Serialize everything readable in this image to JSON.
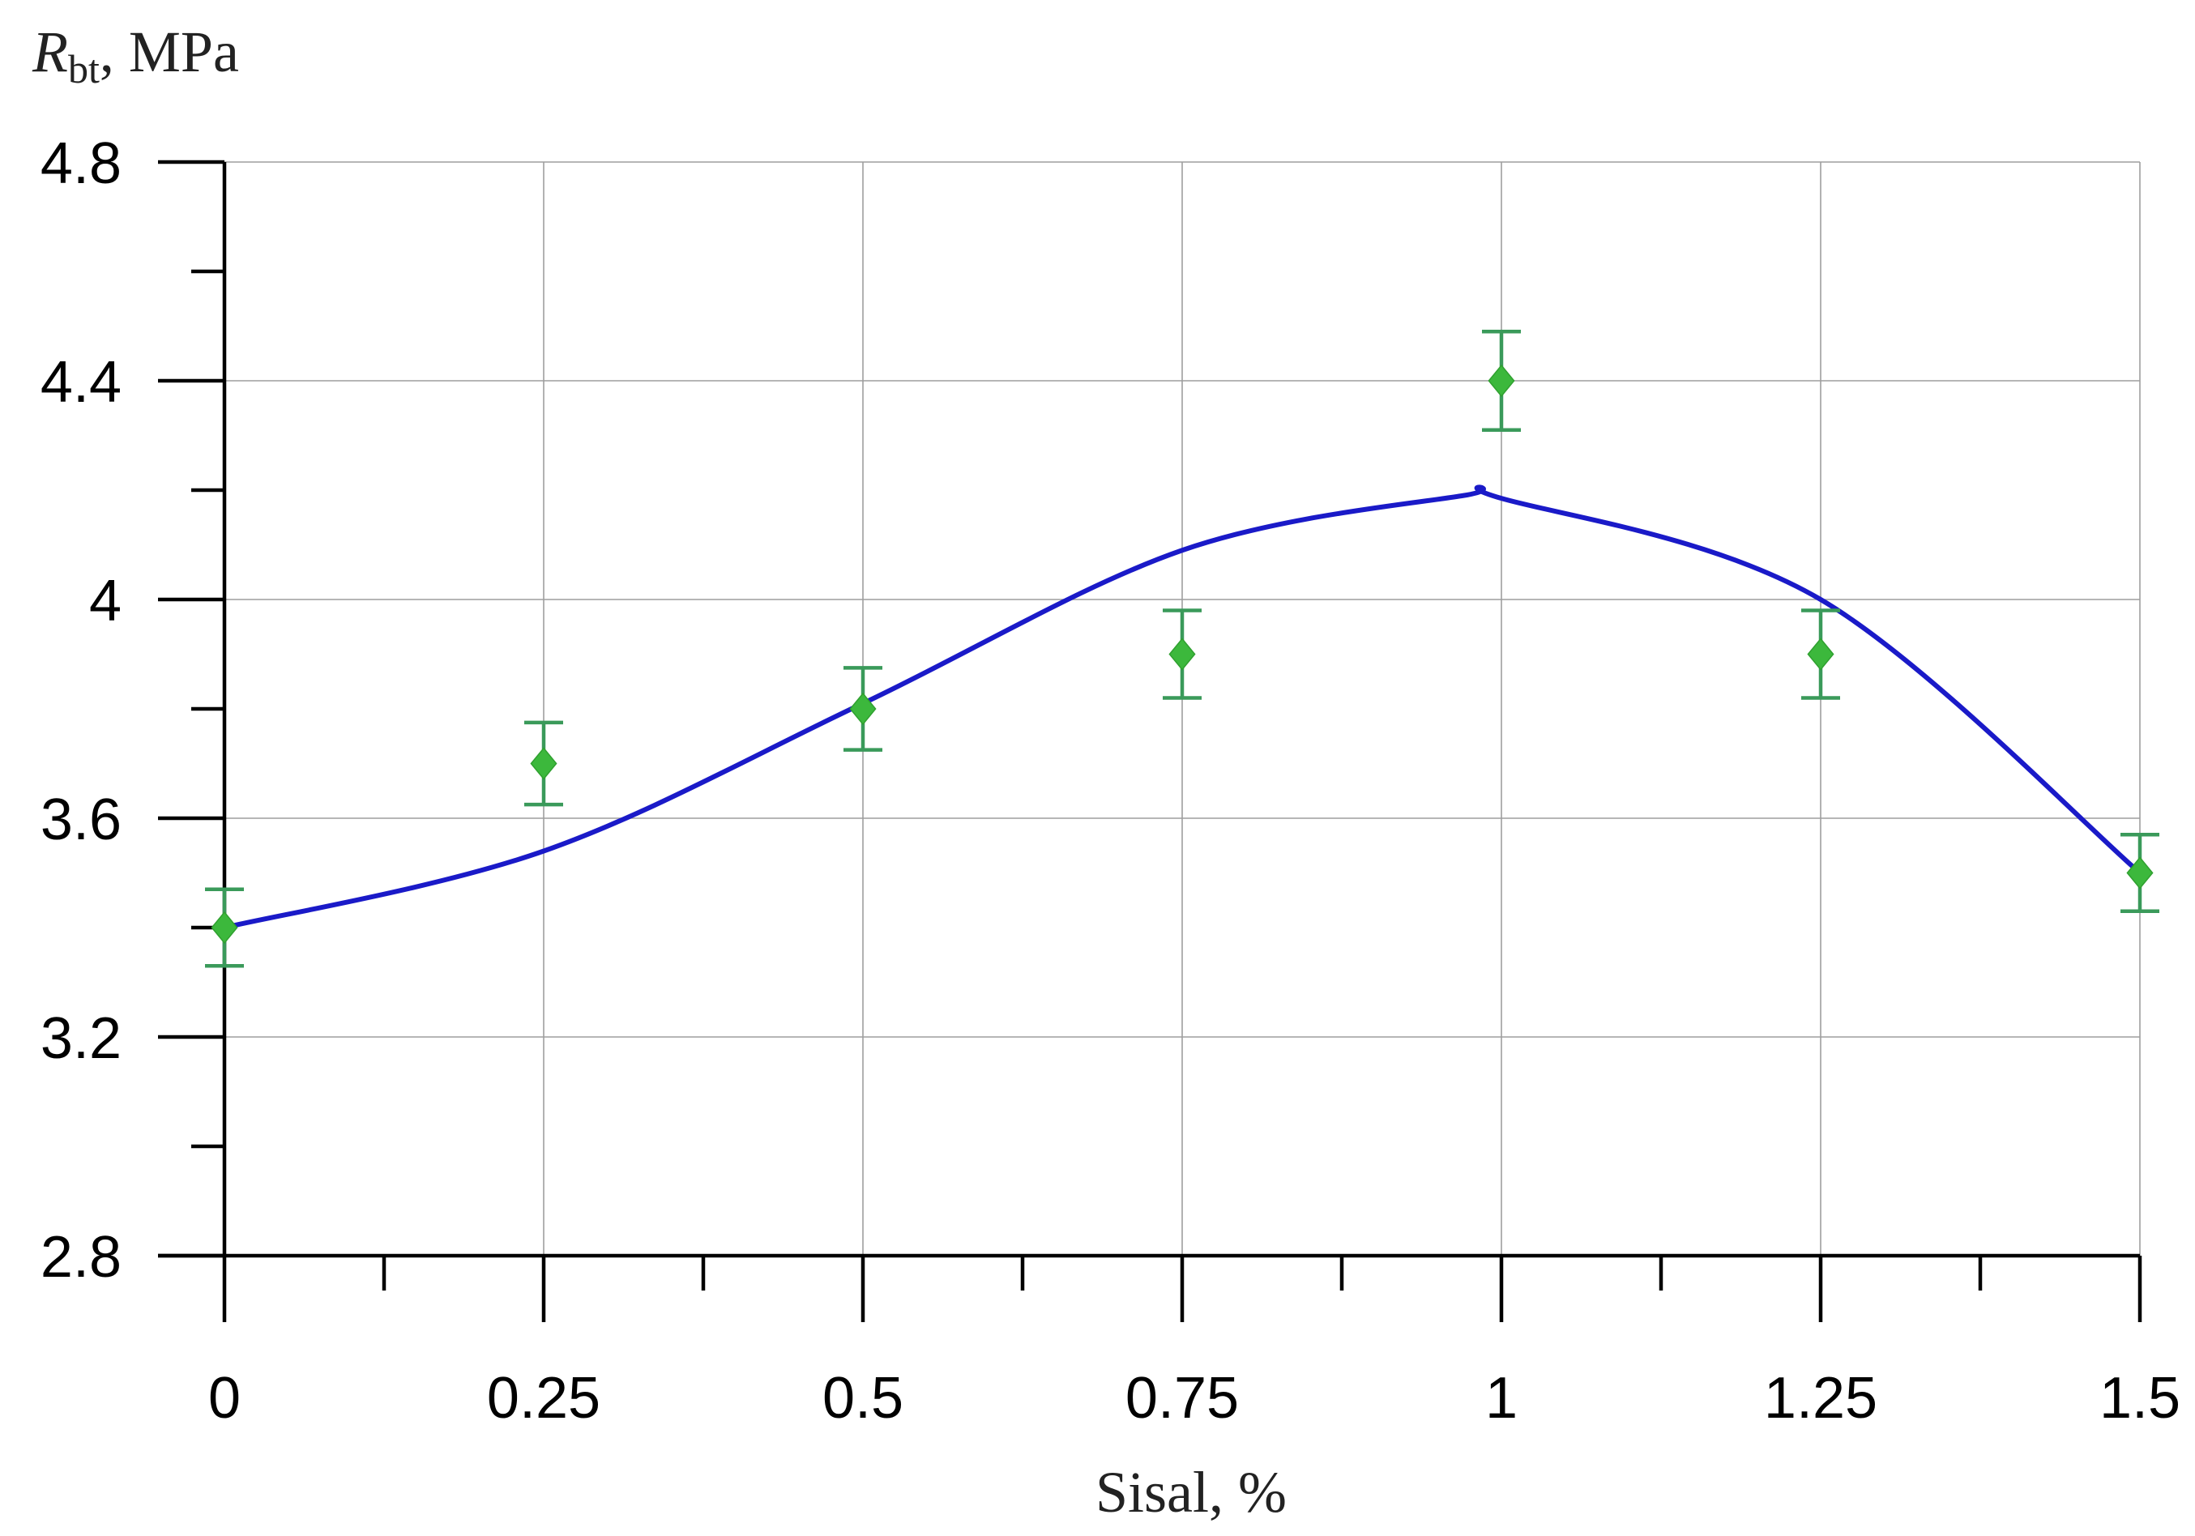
{
  "chart_data": {
    "type": "scatter",
    "title": "",
    "xlabel": "Sisal, %",
    "ylabel": {
      "symbol": "R",
      "subscript": "bt",
      "suffix": ", MPa"
    },
    "xlim": [
      0,
      1.5
    ],
    "ylim": [
      2.8,
      4.8
    ],
    "x_ticks": [
      "0",
      "0.25",
      "0.5",
      "0.75",
      "1",
      "1.25",
      "1.5"
    ],
    "y_ticks": [
      "2.8",
      "3.2",
      "3.6",
      "4",
      "4.4",
      "4.8"
    ],
    "x_tick_values": [
      0,
      0.25,
      0.5,
      0.75,
      1,
      1.25,
      1.5
    ],
    "y_tick_values": [
      2.8,
      3.2,
      3.6,
      4.0,
      4.4,
      4.8
    ],
    "grid": true,
    "series": [
      {
        "kind": "points",
        "marker": "diamond",
        "color": "#3cb83c",
        "error_bar_color": "#3a9a5a",
        "x": [
          0,
          0.25,
          0.5,
          0.75,
          1,
          1.25,
          1.5
        ],
        "y": [
          3.4,
          3.7,
          3.8,
          3.9,
          4.4,
          3.9,
          3.5
        ],
        "error": [
          0.07,
          0.075,
          0.075,
          0.08,
          0.09,
          0.08,
          0.07
        ]
      },
      {
        "kind": "fitted-curve",
        "color": "#1a1ac8",
        "x": [
          0,
          0.25,
          0.5,
          0.75,
          0.97,
          1,
          1.25,
          1.5
        ],
        "y": [
          3.4,
          3.54,
          3.81,
          4.09,
          4.19,
          4.185,
          4.0,
          3.5
        ]
      }
    ]
  }
}
